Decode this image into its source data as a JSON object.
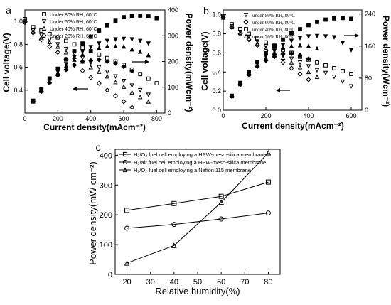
{
  "chart_data": [
    {
      "panel": "a",
      "type": "scatter",
      "xlabel": "Current density(mAcm⁻²)",
      "ylabel_left": "Cell voltage(V)",
      "ylabel_right": "Power density(mWcm⁻²)",
      "xlim": [
        0,
        850
      ],
      "ylim_left": [
        0.2,
        1.1
      ],
      "ylim_right": [
        0,
        400
      ],
      "x_ticks": [
        "0",
        "200",
        "400",
        "600",
        "800"
      ],
      "y_left_ticks": [
        "0.4",
        "0.6",
        "0.8",
        "1.0"
      ],
      "y_right_ticks": [
        "0",
        "100",
        "200",
        "300",
        "400"
      ],
      "legend_position": "top-left",
      "series": [
        {
          "name": "Under 80% RH, 60°C",
          "marker": "square",
          "x": [
            0,
            50,
            100,
            150,
            200,
            250,
            300,
            350,
            400,
            450,
            500,
            550,
            600,
            650,
            700,
            750,
            800
          ],
          "voltage": [
            1.02,
            0.95,
            0.92,
            0.89,
            0.86,
            0.83,
            0.8,
            0.77,
            0.74,
            0.71,
            0.68,
            0.65,
            0.62,
            0.58,
            0.54,
            0.5,
            0.46
          ],
          "power": [
            0,
            48,
            92,
            134,
            172,
            208,
            240,
            270,
            296,
            320,
            340,
            358,
            372,
            377,
            378,
            375,
            368
          ]
        },
        {
          "name": "Under 60% RH, 60°C",
          "marker": "triangle-down",
          "x": [
            0,
            50,
            100,
            150,
            200,
            250,
            300,
            350,
            400,
            450,
            500,
            550,
            600,
            650,
            700,
            750
          ],
          "voltage": [
            1.0,
            0.92,
            0.88,
            0.84,
            0.8,
            0.76,
            0.72,
            0.68,
            0.64,
            0.6,
            0.56,
            0.52,
            0.48,
            0.44,
            0.4,
            0.36
          ],
          "power": [
            0,
            46,
            88,
            126,
            160,
            190,
            216,
            238,
            256,
            270,
            280,
            286,
            288,
            286,
            280,
            270
          ]
        },
        {
          "name": "Under 40% RH, 60°C",
          "marker": "triangle-up",
          "x": [
            0,
            50,
            100,
            150,
            200,
            250,
            300,
            350,
            400,
            450,
            500,
            550,
            600,
            650,
            700,
            750
          ],
          "voltage": [
            1.0,
            0.91,
            0.86,
            0.82,
            0.78,
            0.73,
            0.69,
            0.65,
            0.6,
            0.56,
            0.52,
            0.47,
            0.43,
            0.38,
            0.34,
            0.3
          ],
          "power": [
            0,
            45,
            86,
            123,
            156,
            183,
            207,
            227,
            240,
            252,
            260,
            259,
            258,
            247,
            238,
            225
          ]
        },
        {
          "name": "Under 20% RH, 60°C",
          "marker": "diamond",
          "x": [
            0,
            50,
            100,
            150,
            200,
            250,
            300,
            350,
            400,
            450,
            500,
            550,
            600,
            650
          ],
          "voltage": [
            0.99,
            0.9,
            0.84,
            0.78,
            0.73,
            0.67,
            0.62,
            0.57,
            0.51,
            0.46,
            0.4,
            0.35,
            0.3,
            0.25
          ],
          "power": [
            0,
            45,
            84,
            117,
            146,
            168,
            186,
            200,
            204,
            207,
            200,
            193,
            180,
            163
          ]
        }
      ]
    },
    {
      "panel": "b",
      "type": "scatter",
      "xlabel": "Current density(mAcm⁻²)",
      "ylabel_left": "Cell voltage(V)",
      "ylabel_right": "Power density(Wcm⁻²)",
      "xlim": [
        0,
        650
      ],
      "ylim_left": [
        0.0,
        1.05
      ],
      "ylim_right": [
        0,
        250
      ],
      "x_ticks": [
        "0",
        "200",
        "400",
        "600"
      ],
      "y_left_ticks": [
        "0.0",
        "0.2",
        "0.4",
        "0.6",
        "0.8",
        "1.0"
      ],
      "y_right_ticks": [
        "0",
        "80",
        "160",
        "240"
      ],
      "legend_position": "top-left",
      "series": [
        {
          "name": "under 80% RH, 80°C",
          "marker": "triangle-down",
          "x": [
            0,
            40,
            80,
            120,
            160,
            200,
            240,
            280,
            320,
            360,
            400,
            440,
            480,
            520,
            560,
            600
          ],
          "voltage": [
            0.98,
            0.88,
            0.82,
            0.77,
            0.72,
            0.67,
            0.62,
            0.58,
            0.54,
            0.5,
            0.46,
            0.42,
            0.39,
            0.35,
            0.3,
            0.25
          ],
          "power": [
            0,
            35,
            66,
            92,
            115,
            134,
            149,
            162,
            173,
            180,
            184,
            185,
            184,
            182,
            168,
            150
          ]
        },
        {
          "name": "under 60% RH, 80°C",
          "marker": "diamond",
          "x": [
            0,
            40,
            80,
            120,
            160,
            200,
            240,
            280,
            320,
            360,
            400
          ],
          "voltage": [
            0.97,
            0.87,
            0.8,
            0.74,
            0.68,
            0.62,
            0.56,
            0.5,
            0.44,
            0.38,
            0.32
          ],
          "power": [
            0,
            35,
            64,
            89,
            109,
            124,
            134,
            140,
            141,
            137,
            128
          ]
        },
        {
          "name": "under 40% RH, 80°C",
          "marker": "square",
          "x": [
            0,
            40,
            80,
            120,
            160,
            200,
            240,
            280,
            320,
            360,
            400,
            440,
            480,
            520,
            560,
            600
          ],
          "voltage": [
            0.99,
            0.9,
            0.85,
            0.8,
            0.75,
            0.71,
            0.67,
            0.63,
            0.6,
            0.56,
            0.53,
            0.5,
            0.47,
            0.44,
            0.41,
            0.38
          ],
          "power": [
            0,
            36,
            68,
            96,
            120,
            142,
            161,
            176,
            192,
            202,
            212,
            220,
            226,
            229,
            230,
            228
          ]
        },
        {
          "name": "under 20% RH, 80°C",
          "marker": "triangle-up",
          "x": [
            0,
            40,
            80,
            120,
            160,
            200,
            240,
            280,
            320,
            360,
            400,
            440
          ],
          "voltage": [
            0.97,
            0.87,
            0.81,
            0.75,
            0.7,
            0.65,
            0.6,
            0.55,
            0.5,
            0.45,
            0.4,
            0.35
          ],
          "power": [
            0,
            35,
            65,
            90,
            112,
            130,
            144,
            154,
            160,
            162,
            160,
            154
          ]
        }
      ]
    },
    {
      "panel": "c",
      "type": "line",
      "xlabel": "Relative humidity(%)",
      "ylabel": "Power density(mW cm⁻²)",
      "xlim": [
        15,
        85
      ],
      "ylim": [
        0,
        420
      ],
      "x_ticks": [
        "20",
        "30",
        "40",
        "50",
        "60",
        "70",
        "80"
      ],
      "y_ticks": [
        "0",
        "100",
        "200",
        "300",
        "400"
      ],
      "legend_position": "top-left",
      "x": [
        20,
        40,
        60,
        80
      ],
      "series": [
        {
          "name": "H₂/O₂ fuel cell employing a HPW-meso-silica membrane",
          "marker": "square",
          "values": [
            215,
            238,
            262,
            310
          ]
        },
        {
          "name": "H₂/air fuel cell employing a HPW-meso-silica membrane",
          "marker": "circle",
          "values": [
            155,
            168,
            186,
            206
          ]
        },
        {
          "name": "H₂/O₂ fuel cell employing a Nafion 115 membrane",
          "marker": "triangle-up",
          "values": [
            38,
            97,
            242,
            408
          ]
        }
      ]
    }
  ],
  "panel_labels": [
    "a",
    "b",
    "c"
  ]
}
